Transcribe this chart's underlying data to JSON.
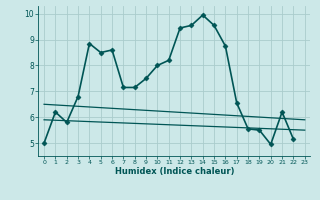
{
  "title": "",
  "xlabel": "Humidex (Indice chaleur)",
  "xlim": [
    -0.5,
    23.5
  ],
  "ylim": [
    4.5,
    10.3
  ],
  "yticks": [
    5,
    6,
    7,
    8,
    9,
    10
  ],
  "xticks": [
    0,
    1,
    2,
    3,
    4,
    5,
    6,
    7,
    8,
    9,
    10,
    11,
    12,
    13,
    14,
    15,
    16,
    17,
    18,
    19,
    20,
    21,
    22,
    23
  ],
  "bg_color": "#cce8e8",
  "grid_color": "#aacccc",
  "line_color": "#005555",
  "series": [
    {
      "x": [
        0,
        1,
        2,
        3,
        4,
        5,
        6,
        7,
        8,
        9,
        10,
        11,
        12,
        13,
        14,
        15,
        16,
        17,
        18,
        19,
        20,
        21,
        22
      ],
      "y": [
        5.0,
        6.2,
        5.8,
        6.8,
        8.85,
        8.5,
        8.6,
        7.15,
        7.15,
        7.5,
        8.0,
        8.2,
        9.45,
        9.55,
        9.95,
        9.55,
        8.75,
        6.55,
        5.55,
        5.5,
        4.95,
        6.2,
        5.15
      ],
      "marker": "D",
      "markersize": 2.5,
      "linewidth": 1.2
    },
    {
      "x": [
        0,
        23
      ],
      "y": [
        6.5,
        5.9
      ],
      "marker": null,
      "markersize": 0,
      "linewidth": 0.9
    },
    {
      "x": [
        0,
        23
      ],
      "y": [
        5.9,
        5.5
      ],
      "marker": null,
      "markersize": 0,
      "linewidth": 0.9
    }
  ]
}
